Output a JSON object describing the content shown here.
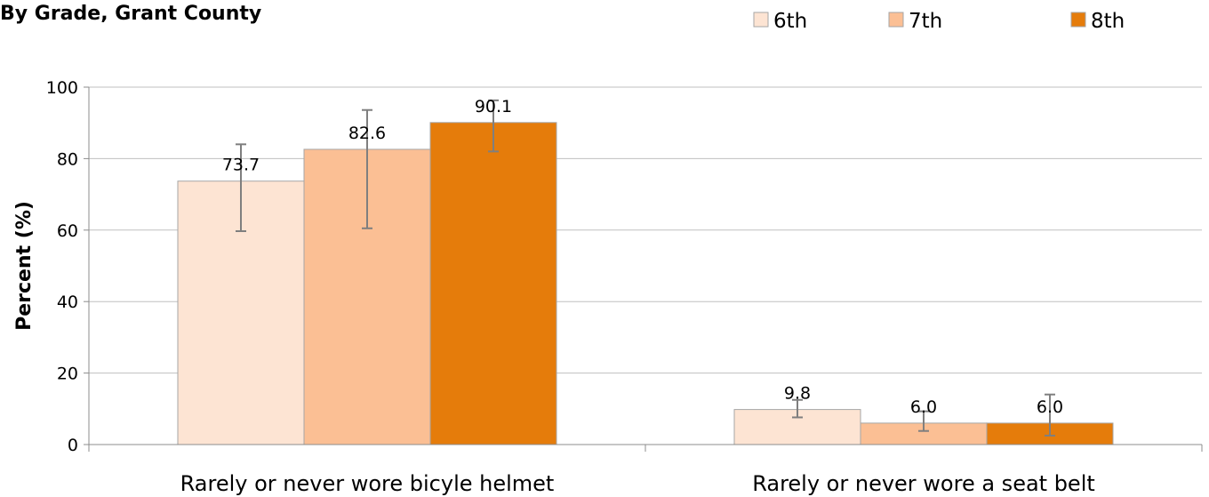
{
  "chart_data": {
    "type": "bar",
    "title": "By Grade, Grant County",
    "ylabel": "Percent (%)",
    "xlabel": "",
    "ylim": [
      0,
      100
    ],
    "yticks": [
      0,
      20,
      40,
      60,
      80,
      100
    ],
    "grid": true,
    "legend_position": "top-right",
    "categories": [
      "Rarely or never wore bicyle helmet",
      "Rarely or never wore a seat belt"
    ],
    "series": [
      {
        "name": "6th",
        "color": "#fde4d3",
        "values": [
          73.7,
          9.8
        ],
        "labels": [
          "73.7",
          "9.8"
        ],
        "err_low": [
          59.7,
          7.6
        ],
        "err_high": [
          84.0,
          12.5
        ]
      },
      {
        "name": "7th",
        "color": "#fbbf94",
        "values": [
          82.6,
          6.0
        ],
        "labels": [
          "82.6",
          "6.0"
        ],
        "err_low": [
          60.5,
          3.8
        ],
        "err_high": [
          93.6,
          9.3
        ]
      },
      {
        "name": "8th",
        "color": "#e57c0b",
        "values": [
          90.1,
          6.0
        ],
        "labels": [
          "90.1",
          "6.0"
        ],
        "err_low": [
          82.0,
          2.5
        ],
        "err_high": [
          96.3,
          14.0
        ]
      }
    ]
  }
}
